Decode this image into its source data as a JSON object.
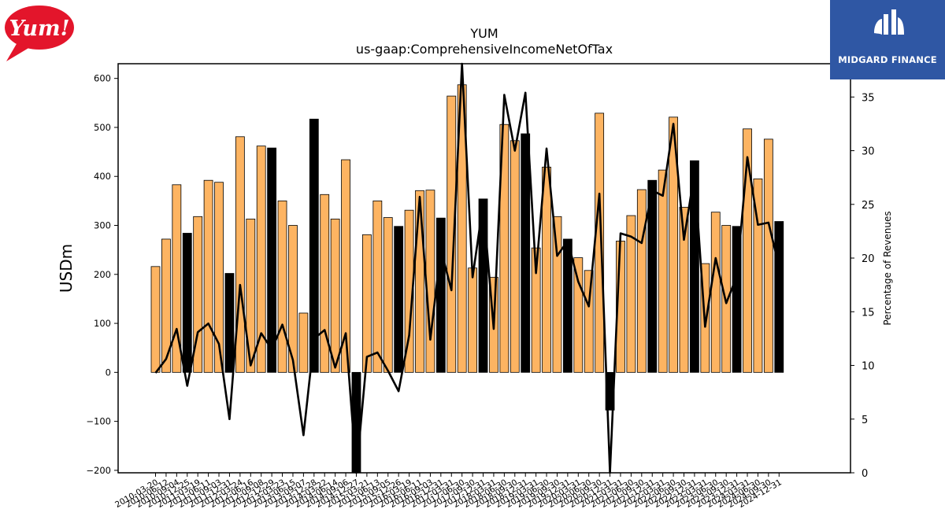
{
  "logos": {
    "left_logo_text": "Yum!",
    "right_brand_text": "MIDGARD FINANCE"
  },
  "colors": {
    "bar_default": "#fdb462",
    "bar_q4": "#000000",
    "line": "#000000",
    "brand_bg": "#2f57a4",
    "yum_red": "#e3152b"
  },
  "chart_data": {
    "type": "bar",
    "title": "YUM",
    "subtitle": "us-gaap:ComprehensiveIncomeNetOfTax",
    "ylabel": "USDm",
    "y2label": "Percentage of Revenues",
    "ylim": [
      -205,
      630
    ],
    "y2lim": [
      0,
      38.1
    ],
    "yticks": [
      -200,
      -100,
      0,
      100,
      200,
      300,
      400,
      500,
      600
    ],
    "y2ticks": [
      0,
      5,
      10,
      15,
      20,
      25,
      30,
      35
    ],
    "categories": [
      "2010-03-20",
      "2010-06-12",
      "2010-09-04",
      "2010-12-25",
      "2011-03-19",
      "2011-06-11",
      "2011-09-03",
      "2011-12-31",
      "2012-03-24",
      "2012-06-16",
      "2012-09-08",
      "2012-12-29",
      "2013-03-23",
      "2013-06-15",
      "2013-09-07",
      "2013-12-28",
      "2014-03-22",
      "2014-06-14",
      "2014-09-06",
      "2014-12-27",
      "2015-03-21",
      "2015-06-13",
      "2015-09-05",
      "2015-12-26",
      "2016-03-19",
      "2016-06-11",
      "2016-09-03",
      "2016-12-31",
      "2017-03-31",
      "2017-06-30",
      "2017-09-30",
      "2017-12-31",
      "2018-03-31",
      "2018-06-30",
      "2018-09-30",
      "2018-12-31",
      "2019-03-31",
      "2019-06-30",
      "2019-09-30",
      "2019-12-31",
      "2020-03-31",
      "2020-06-30",
      "2020-09-30",
      "2020-12-31",
      "2021-03-31",
      "2021-06-30",
      "2021-09-30",
      "2021-12-31",
      "2022-03-31",
      "2022-06-30",
      "2022-09-30",
      "2022-12-31",
      "2023-03-31",
      "2023-06-30",
      "2023-09-30",
      "2023-12-31",
      "2024-03-31",
      "2024-06-30",
      "2024-09-30",
      "2024-12-31"
    ],
    "xticklabels": [
      "2010-03-20",
      "2010-06-12",
      "2010-09-04",
      "2010-12-25",
      "2011-03-19",
      "2011-06-11",
      "2011-09-03",
      "2011-12-31",
      "2012-03-24",
      "2012-06-16",
      "2012-09-08",
      "2012-12-29",
      "2013-03-23",
      "2013-06-15",
      "2013-09-07",
      "2013-12-28",
      "2014-03-22",
      "2014-06-14",
      "2014-09-06",
      "2014-12-27",
      "2015-03-21",
      "2015-06-13",
      "2015-09-05",
      "2015-12-26",
      "2016-03-19",
      "2016-06-11",
      "2016-09-03",
      "2016-12-31",
      "2017-03-31",
      "2017-06-30",
      "2017-09-30",
      "2017-12-31",
      "2018-03-31",
      "2018-06-30",
      "2018-09-30",
      "2018-12-31",
      "2019-03-31",
      "2019-06-30",
      "2019-09-30",
      "2019-12-31",
      "2020-03-31",
      "2020-06-30",
      "2020-09-30",
      "2020-12-31",
      "2021-03-31",
      "2021-06-30",
      "2021-09-30",
      "2021-12-31",
      "2022-03-31",
      "2022-06-30",
      "2022-09-30",
      "2022-12-31",
      "2023-03-31",
      "2023-06-30",
      "2023-09-30",
      "2023-12-31",
      "2024-03-31",
      "2024-06-30",
      "2024-09-30",
      "2024-12-31"
    ],
    "values": [
      216,
      272,
      383,
      284,
      318,
      392,
      388,
      202,
      481,
      313,
      462,
      458,
      350,
      300,
      121,
      517,
      363,
      313,
      434,
      -210,
      281,
      350,
      316,
      298,
      331,
      371,
      372,
      315,
      564,
      587,
      213,
      354,
      194,
      506,
      473,
      487,
      254,
      419,
      318,
      272,
      234,
      208,
      529,
      -77,
      268,
      320,
      373,
      392,
      413,
      521,
      337,
      432,
      222,
      327,
      300,
      298,
      497,
      395,
      476,
      308
    ],
    "q4_flags": [
      false,
      false,
      false,
      true,
      false,
      false,
      false,
      true,
      false,
      false,
      false,
      true,
      false,
      false,
      false,
      true,
      false,
      false,
      false,
      true,
      false,
      false,
      false,
      true,
      false,
      false,
      false,
      true,
      false,
      false,
      false,
      true,
      false,
      false,
      false,
      true,
      false,
      false,
      false,
      true,
      false,
      false,
      false,
      true,
      false,
      false,
      false,
      true,
      false,
      false,
      false,
      true,
      false,
      false,
      false,
      true,
      false,
      false,
      false,
      true
    ],
    "series": [
      {
        "values": [
          216,
          272,
          383,
          284,
          318,
          392,
          388,
          202,
          481,
          313,
          462,
          458,
          350,
          300,
          121,
          517,
          363,
          313,
          434,
          -210,
          281,
          350,
          316,
          298,
          331,
          371,
          372,
          315,
          564,
          587,
          213,
          354,
          194,
          506,
          473,
          487,
          254,
          419,
          318,
          272,
          234,
          208,
          529,
          -77,
          268,
          320,
          373,
          392,
          413,
          521,
          337,
          432,
          222,
          327,
          300,
          298,
          497,
          395,
          476,
          308
        ]
      },
      {
        "axis": "right",
        "values": [
          9.3,
          10.6,
          13.4,
          8.1,
          13.1,
          13.9,
          12.0,
          5.0,
          17.5,
          10.0,
          13.0,
          11.5,
          13.8,
          10.5,
          3.5,
          12.5,
          13.3,
          9.8,
          13.0,
          -1.0,
          10.8,
          11.2,
          9.5,
          7.6,
          12.8,
          25.7,
          12.4,
          20.8,
          17.0,
          38.1,
          18.2,
          25.1,
          13.4,
          35.2,
          30.0,
          35.4,
          18.6,
          30.2,
          20.2,
          21.6,
          17.8,
          15.5,
          26.0,
          -1.0,
          22.3,
          22.0,
          21.4,
          26.3,
          25.8,
          32.5,
          21.7,
          28.0,
          13.6,
          20.0,
          15.8,
          18.3,
          29.4,
          23.1,
          23.3,
          19.2
        ]
      }
    ],
    "grid": false
  }
}
